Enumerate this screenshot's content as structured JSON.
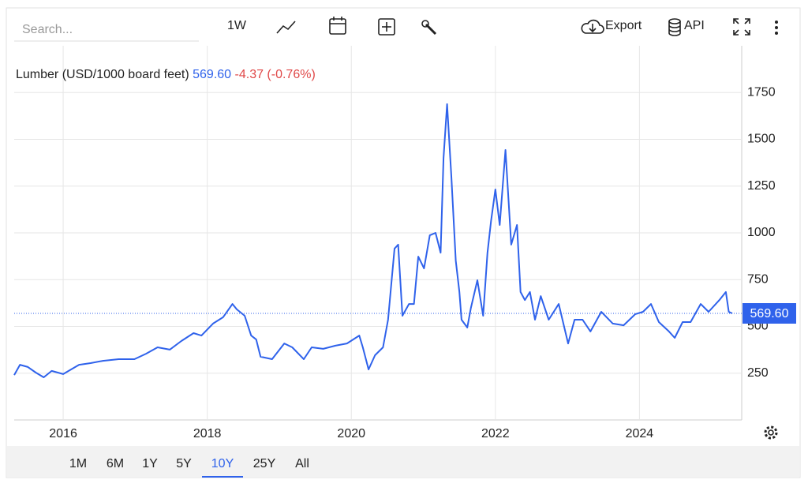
{
  "toolbar": {
    "search_placeholder": "Search...",
    "interval": "1W",
    "export": "Export",
    "api": "API"
  },
  "ranges": [
    "1M",
    "6M",
    "1Y",
    "5Y",
    "10Y",
    "25Y",
    "All"
  ],
  "chart_data": {
    "type": "line",
    "title": "Lumber (USD/1000 board feet)",
    "last_price": "569.60",
    "change": "-4.37 (-0.76%)",
    "color": "#2f62eb",
    "x": [
      2015.32,
      2015.4,
      2015.51,
      2015.62,
      2015.73,
      2015.84,
      2016.0,
      2016.11,
      2016.22,
      2016.38,
      2016.55,
      2016.77,
      2016.99,
      2017.15,
      2017.31,
      2017.48,
      2017.64,
      2017.81,
      2017.92,
      2018.08,
      2018.22,
      2018.35,
      2018.41,
      2018.52,
      2018.61,
      2018.68,
      2018.74,
      2018.9,
      2019.07,
      2019.18,
      2019.34,
      2019.45,
      2019.61,
      2019.78,
      2019.94,
      2020.11,
      2020.16,
      2020.24,
      2020.33,
      2020.44,
      2020.51,
      2020.6,
      2020.65,
      2020.71,
      2020.8,
      2020.87,
      2020.93,
      2021.01,
      2021.09,
      2021.17,
      2021.24,
      2021.28,
      2021.33,
      2021.39,
      2021.45,
      2021.5,
      2021.53,
      2021.61,
      2021.66,
      2021.75,
      2021.83,
      2021.89,
      2021.94,
      2022.0,
      2022.06,
      2022.14,
      2022.22,
      2022.3,
      2022.35,
      2022.41,
      2022.48,
      2022.55,
      2022.63,
      2022.74,
      2022.88,
      2023.01,
      2023.1,
      2023.21,
      2023.32,
      2023.47,
      2023.63,
      2023.78,
      2023.94,
      2024.05,
      2024.16,
      2024.27,
      2024.41,
      2024.49,
      2024.6,
      2024.71,
      2024.85,
      2024.96,
      2025.11,
      2025.2,
      2025.24,
      2025.29
    ],
    "values": [
      240,
      295,
      283,
      253,
      228,
      262,
      245,
      270,
      295,
      304,
      316,
      325,
      325,
      354,
      388,
      376,
      422,
      464,
      451,
      515,
      549,
      620,
      591,
      557,
      451,
      430,
      338,
      325,
      409,
      388,
      325,
      388,
      380,
      397,
      409,
      451,
      388,
      270,
      346,
      388,
      536,
      916,
      937,
      557,
      620,
      620,
      873,
      810,
      987,
      1000,
      894,
      1401,
      1688,
      1295,
      852,
      684,
      536,
      494,
      599,
      747,
      557,
      894,
      1063,
      1232,
      1042,
      1443,
      937,
      1042,
      684,
      641,
      684,
      536,
      662,
      536,
      620,
      409,
      536,
      536,
      473,
      578,
      515,
      506,
      565,
      578,
      620,
      523,
      473,
      439,
      523,
      523,
      620,
      578,
      641,
      684,
      578,
      569.6
    ],
    "xlim": [
      2015.32,
      2025.42
    ],
    "xticks": [
      2016,
      2018,
      2020,
      2022,
      2024
    ],
    "ylim": [
      0,
      2000
    ],
    "yticks": [
      250,
      500,
      750,
      1000,
      1250,
      1500,
      1750
    ],
    "grid": true
  }
}
